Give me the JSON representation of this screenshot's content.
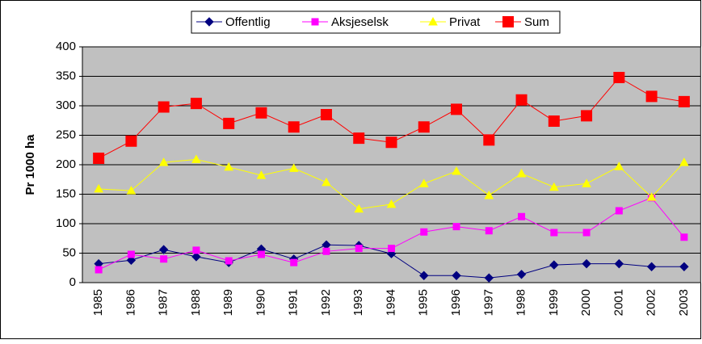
{
  "chart_data": {
    "type": "line",
    "y_label": "Pr 1000 ha",
    "categories": [
      "1985",
      "1986",
      "1987",
      "1988",
      "1989",
      "1990",
      "1991",
      "1992",
      "1993",
      "1994",
      "1995",
      "1996",
      "1997",
      "1998",
      "1999",
      "2000",
      "2001",
      "2002",
      "2003"
    ],
    "series": [
      {
        "name": "Offentlig",
        "color": "#000080",
        "marker": "diamond",
        "values": [
          32,
          38,
          56,
          44,
          34,
          57,
          40,
          64,
          63,
          49,
          12,
          12,
          8,
          14,
          30,
          32,
          32,
          27,
          27
        ]
      },
      {
        "name": "Aksjeselsk",
        "color": "#ff00ff",
        "marker": "square",
        "values": [
          22,
          48,
          40,
          55,
          37,
          48,
          34,
          53,
          58,
          58,
          86,
          95,
          88,
          112,
          85,
          85,
          122,
          144,
          77
        ]
      },
      {
        "name": "Privat",
        "color": "#ffff00",
        "marker": "triangle",
        "values": [
          159,
          156,
          204,
          209,
          196,
          182,
          194,
          170,
          125,
          133,
          168,
          189,
          148,
          185,
          162,
          168,
          197,
          145,
          204
        ]
      },
      {
        "name": "Sum",
        "color": "#ff0000",
        "marker": "bigsquare",
        "values": [
          211,
          240,
          298,
          304,
          270,
          288,
          264,
          285,
          245,
          238,
          264,
          294,
          242,
          310,
          274,
          283,
          348,
          316,
          307
        ]
      }
    ],
    "ylim": [
      0,
      400
    ],
    "yticks": [
      0,
      50,
      100,
      150,
      200,
      250,
      300,
      350,
      400
    ],
    "grid": true,
    "legend": "top"
  }
}
